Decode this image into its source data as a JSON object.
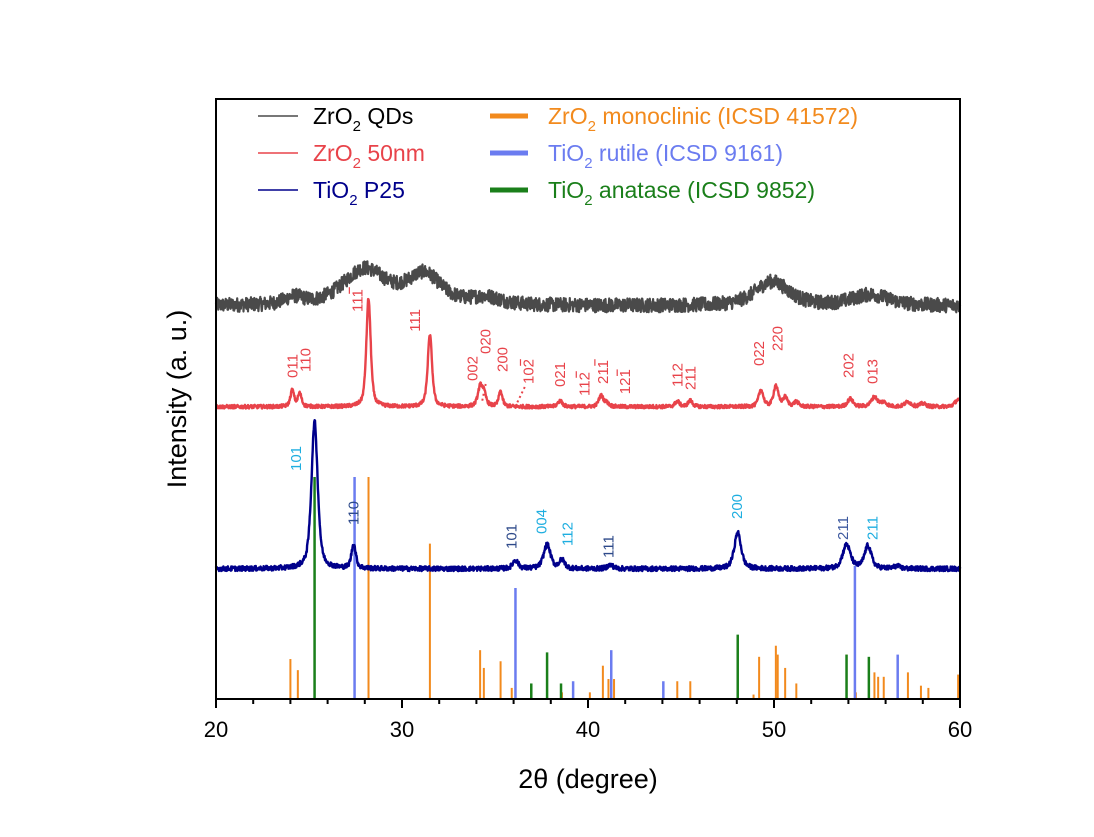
{
  "chart_data": {
    "type": "line",
    "title": "",
    "xlabel": "2θ (degree)",
    "ylabel": "Intensity (a. u.)",
    "xlim": [
      20,
      60
    ],
    "ylim": [
      0,
      1
    ],
    "grid": false,
    "x_ticks": [
      20,
      30,
      40,
      50,
      60
    ],
    "x_tick_labels": [
      "20",
      "30",
      "40",
      "50",
      "60"
    ],
    "x_minor_step": 2,
    "y_ticks_shown": false,
    "legend": {
      "placement": "top",
      "entries": [
        {
          "key": "zro2_qds",
          "main": "ZrO",
          "sub": "2",
          "rest": " QDs",
          "color": "#4a4a4a",
          "style": "thin-line"
        },
        {
          "key": "zro2_50nm",
          "main": "ZrO",
          "sub": "2",
          "rest": " 50nm",
          "color": "#e8434a",
          "style": "thin-line"
        },
        {
          "key": "tio2_p25",
          "main": "TiO",
          "sub": "2",
          "rest": " P25",
          "color": "#00008b",
          "style": "thin-line"
        },
        {
          "key": "zro2_mono",
          "main": "ZrO",
          "sub": "2",
          "rest": " monoclinic (ICSD 41572)",
          "color": "#f28a1d",
          "style": "thick-bar"
        },
        {
          "key": "tio2_rutile",
          "main": "TiO",
          "sub": "2",
          "rest": " rutile (ICSD 9161)",
          "color": "#6b7cf0",
          "style": "thick-bar"
        },
        {
          "key": "tio2_anatase",
          "main": "TiO",
          "sub": "2",
          "rest": " anatase (ICSD 9852)",
          "color": "#1a7f1a",
          "style": "thick-bar"
        }
      ]
    },
    "series": [
      {
        "name": "ZrO2 QDs",
        "color": "#4a4a4a",
        "baseline": 0.655,
        "noise": 0.012,
        "peaks": [
          {
            "x": 24.2,
            "h": 0.012,
            "w": 0.6
          },
          {
            "x": 28.0,
            "h": 0.06,
            "w": 1.4
          },
          {
            "x": 31.2,
            "h": 0.05,
            "w": 1.1
          },
          {
            "x": 34.5,
            "h": 0.012,
            "w": 1.0
          },
          {
            "x": 49.9,
            "h": 0.04,
            "w": 1.1
          },
          {
            "x": 55.2,
            "h": 0.018,
            "w": 1.2
          }
        ]
      },
      {
        "name": "ZrO2 50nm",
        "color": "#e8434a",
        "baseline": 0.487,
        "noise": 0.003,
        "peaks": [
          {
            "x": 24.1,
            "h": 0.027,
            "w": 0.12
          },
          {
            "x": 24.5,
            "h": 0.022,
            "w": 0.12
          },
          {
            "x": 28.2,
            "h": 0.18,
            "w": 0.14
          },
          {
            "x": 31.5,
            "h": 0.12,
            "w": 0.14
          },
          {
            "x": 34.2,
            "h": 0.03,
            "w": 0.15
          },
          {
            "x": 34.4,
            "h": 0.02,
            "w": 0.15
          },
          {
            "x": 35.3,
            "h": 0.025,
            "w": 0.12
          },
          {
            "x": 38.5,
            "h": 0.01,
            "w": 0.15
          },
          {
            "x": 40.7,
            "h": 0.018,
            "w": 0.15
          },
          {
            "x": 41.0,
            "h": 0.006,
            "w": 0.15
          },
          {
            "x": 44.8,
            "h": 0.009,
            "w": 0.15
          },
          {
            "x": 45.5,
            "h": 0.01,
            "w": 0.15
          },
          {
            "x": 49.3,
            "h": 0.028,
            "w": 0.15
          },
          {
            "x": 50.1,
            "h": 0.035,
            "w": 0.15
          },
          {
            "x": 50.6,
            "h": 0.015,
            "w": 0.15
          },
          {
            "x": 51.2,
            "h": 0.008,
            "w": 0.15
          },
          {
            "x": 54.1,
            "h": 0.013,
            "w": 0.18
          },
          {
            "x": 55.4,
            "h": 0.016,
            "w": 0.2
          },
          {
            "x": 55.9,
            "h": 0.007,
            "w": 0.2
          },
          {
            "x": 57.2,
            "h": 0.008,
            "w": 0.2
          },
          {
            "x": 58.0,
            "h": 0.005,
            "w": 0.2
          },
          {
            "x": 59.9,
            "h": 0.012,
            "w": 0.2
          }
        ]
      },
      {
        "name": "TiO2 P25",
        "color": "#00008b",
        "baseline": 0.217,
        "noise": 0.004,
        "peaks": [
          {
            "x": 25.3,
            "h": 0.245,
            "w": 0.2
          },
          {
            "x": 27.4,
            "h": 0.04,
            "w": 0.14
          },
          {
            "x": 36.1,
            "h": 0.014,
            "w": 0.18
          },
          {
            "x": 37.8,
            "h": 0.04,
            "w": 0.22
          },
          {
            "x": 38.6,
            "h": 0.014,
            "w": 0.18
          },
          {
            "x": 41.2,
            "h": 0.006,
            "w": 0.2
          },
          {
            "x": 48.05,
            "h": 0.06,
            "w": 0.22
          },
          {
            "x": 53.9,
            "h": 0.04,
            "w": 0.25
          },
          {
            "x": 55.05,
            "h": 0.038,
            "w": 0.22
          },
          {
            "x": 56.6,
            "h": 0.004,
            "w": 0.2
          }
        ]
      }
    ],
    "reference_patterns": [
      {
        "name": "ZrO2 monoclinic (ICSD 41572)",
        "color": "#f28a1d",
        "lines": [
          {
            "x": 24.0,
            "rel": 0.18
          },
          {
            "x": 24.4,
            "rel": 0.13
          },
          {
            "x": 28.2,
            "rel": 1.0
          },
          {
            "x": 31.5,
            "rel": 0.7
          },
          {
            "x": 34.2,
            "rel": 0.22
          },
          {
            "x": 34.4,
            "rel": 0.14
          },
          {
            "x": 35.3,
            "rel": 0.17
          },
          {
            "x": 35.9,
            "rel": 0.05
          },
          {
            "x": 38.6,
            "rel": 0.03
          },
          {
            "x": 40.1,
            "rel": 0.03
          },
          {
            "x": 40.8,
            "rel": 0.15
          },
          {
            "x": 41.1,
            "rel": 0.09
          },
          {
            "x": 41.4,
            "rel": 0.09
          },
          {
            "x": 44.8,
            "rel": 0.08
          },
          {
            "x": 45.5,
            "rel": 0.08
          },
          {
            "x": 48.9,
            "rel": 0.02
          },
          {
            "x": 49.2,
            "rel": 0.19
          },
          {
            "x": 50.1,
            "rel": 0.24
          },
          {
            "x": 50.2,
            "rel": 0.2
          },
          {
            "x": 50.6,
            "rel": 0.14
          },
          {
            "x": 51.2,
            "rel": 0.07
          },
          {
            "x": 53.9,
            "rel": 0.2
          },
          {
            "x": 54.4,
            "rel": 0.03
          },
          {
            "x": 55.4,
            "rel": 0.12
          },
          {
            "x": 55.6,
            "rel": 0.1
          },
          {
            "x": 55.9,
            "rel": 0.1
          },
          {
            "x": 57.2,
            "rel": 0.12
          },
          {
            "x": 57.9,
            "rel": 0.06
          },
          {
            "x": 58.3,
            "rel": 0.05
          },
          {
            "x": 59.9,
            "rel": 0.11
          }
        ]
      },
      {
        "name": "TiO2 rutile (ICSD 9161)",
        "color": "#6b7cf0",
        "lines": [
          {
            "x": 27.45,
            "rel": 1.0
          },
          {
            "x": 36.1,
            "rel": 0.5
          },
          {
            "x": 39.2,
            "rel": 0.08
          },
          {
            "x": 41.25,
            "rel": 0.22
          },
          {
            "x": 44.05,
            "rel": 0.08
          },
          {
            "x": 54.35,
            "rel": 0.6
          },
          {
            "x": 56.65,
            "rel": 0.2
          }
        ]
      },
      {
        "name": "TiO2 anatase (ICSD 9852)",
        "color": "#1a7f1a",
        "lines": [
          {
            "x": 25.3,
            "rel": 1.0
          },
          {
            "x": 36.95,
            "rel": 0.07
          },
          {
            "x": 37.8,
            "rel": 0.21
          },
          {
            "x": 38.55,
            "rel": 0.07
          },
          {
            "x": 48.05,
            "rel": 0.29
          },
          {
            "x": 53.9,
            "rel": 0.2
          },
          {
            "x": 55.1,
            "rel": 0.19
          }
        ]
      }
    ],
    "reference_baseline": 0.0,
    "reference_max_height": 0.37,
    "annotations": [
      {
        "series": "ZrO2 50nm",
        "color": "#e8434a",
        "items": [
          {
            "text": "011",
            "x": 24.1,
            "y": 0.535
          },
          {
            "text": "110",
            "x": 24.8,
            "y": 0.545
          },
          {
            "text": "11̄1̄",
            "plain": "111",
            "bar": [
              2
            ],
            "x": 27.6,
            "y": 0.645
          },
          {
            "text": "111",
            "x": 30.7,
            "y": 0.612
          },
          {
            "text": "002",
            "x": 33.8,
            "y": 0.53
          },
          {
            "text": "020",
            "x": 34.5,
            "y": 0.575
          },
          {
            "text": "200",
            "x": 35.4,
            "y": 0.545
          },
          {
            "text": "102",
            "bar": [
              2
            ],
            "x": 36.8,
            "y": 0.525,
            "leader": [
              [
                36.6,
                0.52
              ],
              [
                36.1,
                0.488
              ]
            ]
          },
          {
            "text": "021",
            "x": 38.5,
            "y": 0.52
          },
          {
            "text": "112",
            "bar": [
              2
            ],
            "x": 39.8,
            "y": 0.505
          },
          {
            "text": "211",
            "bar": [
              2
            ],
            "x": 40.8,
            "y": 0.525
          },
          {
            "text": "121",
            "bar": [
              2
            ],
            "x": 42.0,
            "y": 0.508
          },
          {
            "text": "112",
            "x": 44.8,
            "y": 0.52
          },
          {
            "text": "211",
            "x": 45.5,
            "y": 0.515
          },
          {
            "text": "022",
            "x": 49.2,
            "y": 0.555
          },
          {
            "text": "220",
            "x": 50.2,
            "y": 0.58
          },
          {
            "text": "202",
            "x": 54.0,
            "y": 0.535
          },
          {
            "text": "013",
            "x": 55.3,
            "y": 0.525
          }
        ],
        "dotted_leaders": [
          {
            "from": [
              34.5,
              0.525
            ],
            "to": [
              34.3,
              0.495
            ]
          }
        ]
      },
      {
        "series": "TiO2 P25",
        "items": [
          {
            "text": "101",
            "x": 24.3,
            "y": 0.38,
            "color": "#1eaee0"
          },
          {
            "text": "110",
            "x": 27.4,
            "y": 0.29,
            "color": "#2e4a8a"
          },
          {
            "text": "101",
            "x": 35.9,
            "y": 0.25,
            "color": "#2e4a8a"
          },
          {
            "text": "004",
            "x": 37.5,
            "y": 0.275,
            "color": "#1eaee0"
          },
          {
            "text": "112",
            "x": 38.9,
            "y": 0.255,
            "color": "#1eaee0"
          },
          {
            "text": "111",
            "x": 41.1,
            "y": 0.235,
            "color": "#2e4a8a"
          },
          {
            "text": "200",
            "x": 48.0,
            "y": 0.3,
            "color": "#1eaee0"
          },
          {
            "text": "211",
            "x": 53.7,
            "y": 0.265,
            "color": "#3e5aa0"
          },
          {
            "text": "211",
            "x": 55.3,
            "y": 0.265,
            "color": "#1eaee0"
          }
        ]
      }
    ]
  }
}
